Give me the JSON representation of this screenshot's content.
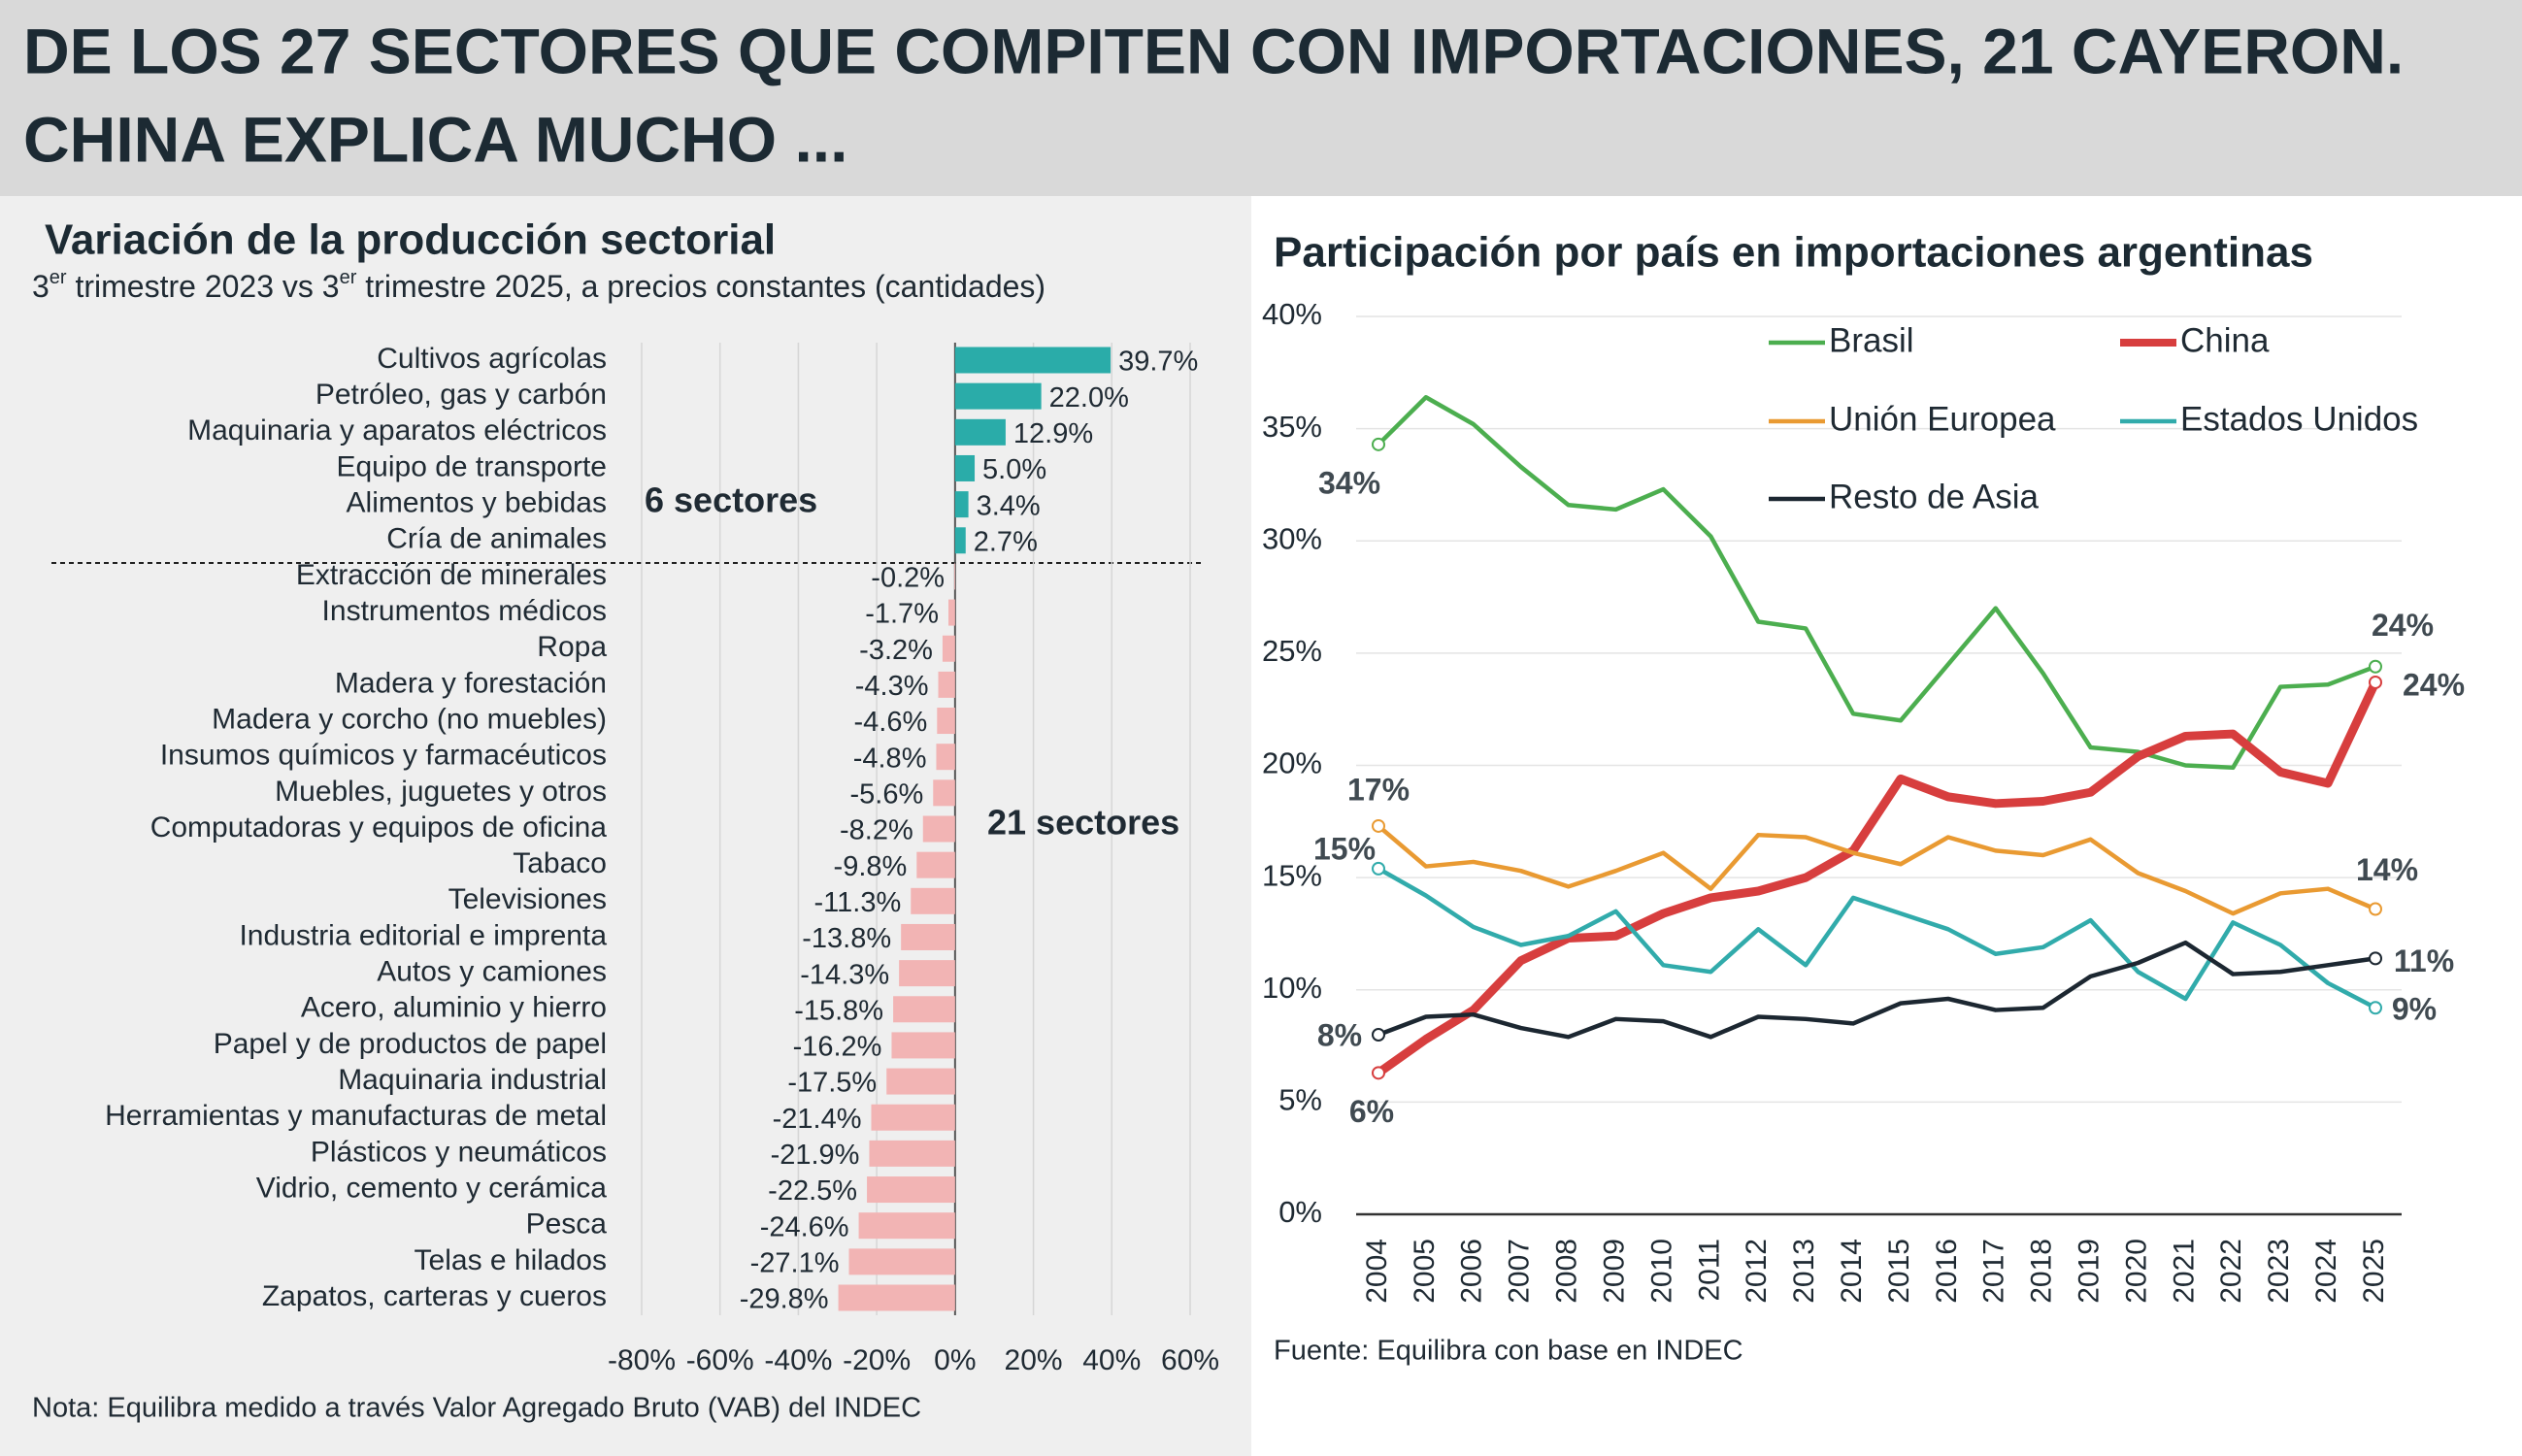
{
  "header": {
    "title_lines": [
      "DE LOS 27 SECTORES QUE COMPITEN CON IMPORTACIONES, 21 CAYERON.",
      "CHINA EXPLICA MUCHO ..."
    ]
  },
  "chart_data": [
    {
      "type": "bar",
      "orientation": "horizontal",
      "title": "Variación de la producción sectorial",
      "subtitle_parts": [
        "3",
        "er",
        " trimestre 2023 vs 3",
        "er",
        " trimestre 2025, a precios constantes (cantidades)"
      ],
      "categories": [
        "Cultivos agrícolas",
        "Petróleo, gas y carbón",
        "Maquinaria y aparatos eléctricos",
        "Equipo de transporte",
        "Alimentos y bebidas",
        "Cría de animales",
        "Extracción de minerales",
        "Instrumentos médicos",
        "Ropa",
        "Madera y forestación",
        "Madera y corcho (no muebles)",
        "Insumos químicos y farmacéuticos",
        "Muebles, juguetes y otros",
        "Computadoras y equipos de oficina",
        "Tabaco",
        "Televisiones",
        "Industria editorial e imprenta",
        "Autos y camiones",
        "Acero, aluminio y hierro",
        "Papel y de productos de papel",
        "Maquinaria industrial",
        "Herramientas y manufacturas de metal",
        "Plásticos y neumáticos",
        "Vidrio, cemento y cerámica",
        "Pesca",
        "Telas e hilados",
        "Zapatos, carteras y cueros"
      ],
      "values": [
        39.7,
        22.0,
        12.9,
        5.0,
        3.4,
        2.7,
        -0.2,
        -1.7,
        -3.2,
        -4.3,
        -4.6,
        -4.8,
        -5.6,
        -8.2,
        -9.8,
        -11.3,
        -13.8,
        -14.3,
        -15.8,
        -16.2,
        -17.5,
        -21.4,
        -21.9,
        -22.5,
        -24.6,
        -27.1,
        -29.8
      ],
      "value_labels": [
        "39.7%",
        "22.0%",
        "12.9%",
        "5.0%",
        "3.4%",
        "2.7%",
        "-0.2%",
        "-1.7%",
        "-3.2%",
        "-4.3%",
        "-4.6%",
        "-4.8%",
        "-5.6%",
        "-8.2%",
        "-9.8%",
        "-11.3%",
        "-13.8%",
        "-14.3%",
        "-15.8%",
        "-16.2%",
        "-17.5%",
        "-21.4%",
        "-21.9%",
        "-22.5%",
        "-24.6%",
        "-27.1%",
        "-29.8%"
      ],
      "positive_color": "#2aaca9",
      "negative_color": "#f2b4b4",
      "positive_label_color": "#45b8b5",
      "negative_label_color": "#eb9090",
      "xlim": [
        -80,
        60
      ],
      "xticks": [
        {
          "value": -80,
          "label": "-80%"
        },
        {
          "value": -60,
          "label": "-60%"
        },
        {
          "value": -40,
          "label": "-40%"
        },
        {
          "value": -20,
          "label": "-20%"
        },
        {
          "value": 0,
          "label": "0%"
        },
        {
          "value": 20,
          "label": "20%"
        },
        {
          "value": 40,
          "label": "40%"
        },
        {
          "value": 60,
          "label": "60%"
        }
      ],
      "grid": true,
      "annotations": [
        "6 sectores",
        "21 sectores"
      ],
      "note": "Nota: Equilibra medido a través Valor Agregado Bruto (VAB) del INDEC"
    },
    {
      "type": "line",
      "title": "Participación por país en importaciones argentinas",
      "categories": [
        "2004",
        "2005",
        "2006",
        "2007",
        "2008",
        "2009",
        "2010",
        "2011",
        "2012",
        "2013",
        "2014",
        "2015",
        "2016",
        "2017",
        "2018",
        "2019",
        "2020",
        "2021",
        "2022",
        "2023",
        "2024",
        "2025"
      ],
      "series": [
        {
          "name": "Brasil",
          "color": "#4cae4f",
          "values": [
            34.3,
            36.4,
            35.2,
            33.3,
            31.6,
            31.4,
            32.3,
            30.2,
            26.4,
            26.1,
            22.3,
            22.0,
            24.5,
            27.0,
            24.1,
            20.8,
            20.6,
            20.0,
            19.9,
            23.5,
            23.6,
            24.4
          ],
          "value_labels": [
            "34%",
            null,
            null,
            null,
            null,
            null,
            null,
            null,
            null,
            null,
            null,
            null,
            null,
            null,
            null,
            null,
            null,
            null,
            null,
            null,
            null,
            "24%"
          ]
        },
        {
          "name": "China",
          "color": "#d73e3e",
          "values": [
            6.3,
            7.8,
            9.1,
            11.3,
            12.3,
            12.4,
            13.4,
            14.1,
            14.4,
            15.0,
            16.2,
            19.4,
            18.6,
            18.3,
            18.4,
            18.8,
            20.4,
            21.3,
            21.4,
            19.7,
            19.2,
            23.7
          ],
          "value_labels": [
            "6%",
            null,
            null,
            null,
            null,
            null,
            null,
            null,
            null,
            null,
            null,
            null,
            null,
            null,
            null,
            null,
            null,
            null,
            null,
            null,
            null,
            "24%"
          ]
        },
        {
          "name": "Unión Europea",
          "color": "#e99a32",
          "values": [
            17.3,
            15.5,
            15.7,
            15.3,
            14.6,
            15.3,
            16.1,
            14.5,
            16.9,
            16.8,
            16.1,
            15.6,
            16.8,
            16.2,
            16.0,
            16.7,
            15.2,
            14.4,
            13.4,
            14.3,
            14.5,
            13.6
          ],
          "value_labels": [
            "17%",
            null,
            null,
            null,
            null,
            null,
            null,
            null,
            null,
            null,
            null,
            null,
            null,
            null,
            null,
            null,
            null,
            null,
            null,
            null,
            null,
            "14%"
          ]
        },
        {
          "name": "Estados Unidos",
          "color": "#31abab",
          "values": [
            15.4,
            14.2,
            12.8,
            12.0,
            12.4,
            13.5,
            11.1,
            10.8,
            12.7,
            11.1,
            14.1,
            13.4,
            12.7,
            11.6,
            11.9,
            13.1,
            10.8,
            9.6,
            13.0,
            12.0,
            10.3,
            9.2
          ],
          "value_labels": [
            "15%",
            null,
            null,
            null,
            null,
            null,
            null,
            null,
            null,
            null,
            null,
            null,
            null,
            null,
            null,
            null,
            null,
            null,
            null,
            null,
            null,
            "9%"
          ]
        },
        {
          "name": "Resto de Asia",
          "color": "#1c2731",
          "values": [
            8.0,
            8.8,
            8.9,
            8.3,
            7.9,
            8.7,
            8.6,
            7.9,
            8.8,
            8.7,
            8.5,
            9.4,
            9.6,
            9.1,
            9.2,
            10.6,
            11.2,
            12.1,
            10.7,
            10.8,
            11.1,
            11.4
          ],
          "value_labels": [
            "8%",
            null,
            null,
            null,
            null,
            null,
            null,
            null,
            null,
            null,
            null,
            null,
            null,
            null,
            null,
            null,
            null,
            null,
            null,
            null,
            null,
            "11%"
          ]
        }
      ],
      "ylim": [
        0,
        40
      ],
      "yticks": [
        {
          "value": 0,
          "label": "0%"
        },
        {
          "value": 5,
          "label": "5%"
        },
        {
          "value": 10,
          "label": "10%"
        },
        {
          "value": 15,
          "label": "15%"
        },
        {
          "value": 20,
          "label": "20%"
        },
        {
          "value": 25,
          "label": "25%"
        },
        {
          "value": 30,
          "label": "30%"
        },
        {
          "value": 35,
          "label": "35%"
        },
        {
          "value": 40,
          "label": "40%"
        }
      ],
      "grid": true,
      "source": "Fuente: Equilibra con base en INDEC"
    }
  ]
}
